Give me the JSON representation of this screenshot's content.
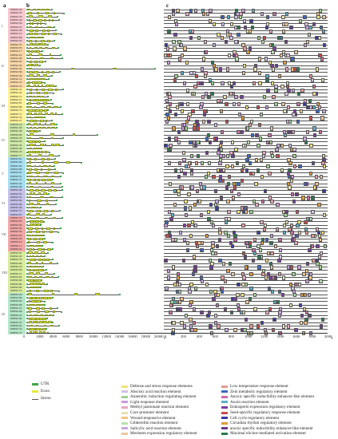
{
  "panels": {
    "a": "a",
    "b": "b",
    "c": "c"
  },
  "groups": [
    {
      "label": "I"
    },
    {
      "label": "II"
    },
    {
      "label": "III"
    },
    {
      "label": "IV"
    },
    {
      "label": "V"
    },
    {
      "label": "VI"
    },
    {
      "label": "VII"
    },
    {
      "label": "VIII"
    },
    {
      "label": "IX"
    }
  ],
  "genes": [
    "PtPP2C44",
    "PtPP2C53",
    "PtPP2C76",
    "PtPP2C46",
    "PtPP2C59",
    "PtPP2C47",
    "PtPP2C38",
    "PtPP2C16",
    "PtPP2C88",
    "PtPP2C05",
    "PtPP2C70",
    "PtPP2C93",
    "PtPP2C17",
    "PtPP2C22",
    "PtPP2C48",
    "PtPP2C65",
    "PtPP2C26",
    "PtPP2C34",
    "PtPP2C86",
    "PtPP2C39",
    "PtPP2C14",
    "PtPP2C23",
    "PtPP2C55",
    "PtPP2C41",
    "PtPP2C24",
    "PtPP2C15",
    "PtPP2C31",
    "PtPP2C87",
    "PtPP2C89",
    "PtPP2C73",
    "PtPP2C71",
    "PtPP2C52",
    "PtPP2C27",
    "PtPP2C18",
    "PtPP2C40",
    "PtPP2C49",
    "PtPP2C92",
    "PtPP2C78",
    "PtPP2C62",
    "PtPP2C33",
    "PtPP2C36",
    "PtPP2C45",
    "PtPP2C77",
    "PtPP2C61",
    "PtPP2C96",
    "PtPP2C95",
    "PtPP2C08",
    "PtPP2C67",
    "PtPP2C81",
    "PtPP2C21",
    "PtPP2C42",
    "PtPP2C06",
    "PtPP2C29",
    "PtPP2C54",
    "PtPP2C01",
    "PtPP2C04",
    "PtPP2C69",
    "PtPP2C30",
    "PtPP2C57",
    "PtPP2C07",
    "PtPP2C72",
    "PtPP2C83",
    "PtPP2C03",
    "PtPP2C82",
    "PtPP2C56",
    "PtPP2C50",
    "PtPP2C63",
    "PtPP2C10",
    "PtPP2C11",
    "PtPP2C32",
    "PtPP2C97",
    "PtPP2C43",
    "PtPP2C79",
    "PtPP2C80",
    "PtPP2C19",
    "PtPP2C09",
    "PtPP2C12",
    "PtPP2C02",
    "PtPP2C90",
    "PtPP2C66",
    "PtPP2C60",
    "PtPP2C13",
    "PtPP2C20",
    "PtPP2C84",
    "PtPP2C85",
    "PtPP2C58",
    "PtPP2C51",
    "PtPP2C94",
    "PtPP2C25",
    "PtPP2C64",
    "PtPP2C37",
    "PtPP2C91",
    "PtPP2C74",
    "PtPP2C75"
  ],
  "axis_b": {
    "ticks": [
      "0",
      "2000",
      "4000",
      "6000",
      "8000",
      "10000",
      "12000",
      "14000",
      "16000",
      "18000",
      "20000"
    ],
    "unit": "5'",
    "end": "3'"
  },
  "axis_c": {
    "ticks": [
      "0",
      "200",
      "400",
      "600",
      "800",
      "1000",
      "1200",
      "1400",
      "1600",
      "1800",
      "2000"
    ],
    "start": "5'",
    "end": "3'"
  },
  "legend_b": [
    {
      "label": "UTR",
      "color": "#3fa54a"
    },
    {
      "label": "Exon",
      "color": "#e6ec3a"
    },
    {
      "label": "Intron",
      "color": "#555555"
    }
  ],
  "legend_c_left": [
    {
      "label": "Defense and stress response elements",
      "color": "#f4e27a"
    },
    {
      "label": "Abscisic acid reaction element",
      "color": "#d6c0e6"
    },
    {
      "label": "Anaerobic induction regulating element",
      "color": "#9fd28f"
    },
    {
      "label": "Light response element",
      "color": "#c89bd6"
    },
    {
      "label": "Methyl jasmonate reaction element",
      "color": "#e6a6c0"
    },
    {
      "label": "Core promoter element",
      "color": "#e6e0b0"
    },
    {
      "label": "Wound-responsive element",
      "color": "#f1c27f"
    },
    {
      "label": "Gibberellin reaction element",
      "color": "#b8e0b0"
    },
    {
      "label": "Salicylic acid reaction element",
      "color": "#c7a6e0"
    },
    {
      "label": "Meristem expression regulatory element",
      "color": "#e8c8a0"
    }
  ],
  "legend_c_right": [
    {
      "label": "Low temperature response element",
      "color": "#e49a9a"
    },
    {
      "label": "Zein metabolic regulatory element",
      "color": "#3a66c4"
    },
    {
      "label": "Anoxic specific inducibility enhancer-like element",
      "color": "#c96ca2"
    },
    {
      "label": "Auxin reaction element",
      "color": "#5ab0c8"
    },
    {
      "label": "Endosperm expression regulatory element",
      "color": "#7a3da0"
    },
    {
      "label": "Seed-specific regulatory response element",
      "color": "#c94a4a"
    },
    {
      "label": "Cell cycle regulatory element",
      "color": "#3a3aa0"
    },
    {
      "label": "Circadian rhythm regulatory element",
      "color": "#e09b3a"
    },
    {
      "label": "anoxic specific inducibility enhancer-like element",
      "color": "#6a3a8a"
    },
    {
      "label": "Maximal elicitor-mediated activation element",
      "color": "#2a7a50"
    }
  ]
}
